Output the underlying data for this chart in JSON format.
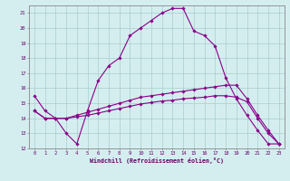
{
  "xlabel": "Windchill (Refroidissement éolien,°C)",
  "top_curve_x": [
    0,
    1,
    2,
    3,
    4,
    5,
    6,
    7,
    8,
    9,
    10,
    11,
    12,
    13,
    14,
    15,
    16,
    17,
    18,
    19,
    20,
    21,
    22,
    23
  ],
  "top_curve_y": [
    15.5,
    14.5,
    14.0,
    13.0,
    12.3,
    14.5,
    16.5,
    17.5,
    18.0,
    19.5,
    20.0,
    20.5,
    21.0,
    21.3,
    21.3,
    19.8,
    19.5,
    18.8,
    16.7,
    15.3,
    14.2,
    13.2,
    12.3,
    12.3
  ],
  "mid_curve_x": [
    0,
    1,
    2,
    3,
    4,
    5,
    6,
    7,
    8,
    9,
    10,
    11,
    12,
    13,
    14,
    15,
    16,
    17,
    18,
    19,
    20,
    21,
    22,
    23
  ],
  "mid_curve_y": [
    14.5,
    14.0,
    14.0,
    14.0,
    14.2,
    14.4,
    14.6,
    14.8,
    15.0,
    15.2,
    15.4,
    15.5,
    15.6,
    15.7,
    15.8,
    15.9,
    16.0,
    16.1,
    16.2,
    16.2,
    15.3,
    14.2,
    13.2,
    12.3
  ],
  "bot_curve_x": [
    0,
    1,
    2,
    3,
    4,
    5,
    6,
    7,
    8,
    9,
    10,
    11,
    12,
    13,
    14,
    15,
    16,
    17,
    18,
    19,
    20,
    21,
    22,
    23
  ],
  "bot_curve_y": [
    14.5,
    14.0,
    14.0,
    14.0,
    14.1,
    14.2,
    14.35,
    14.5,
    14.65,
    14.8,
    14.95,
    15.05,
    15.15,
    15.2,
    15.3,
    15.35,
    15.4,
    15.5,
    15.5,
    15.4,
    15.1,
    14.0,
    13.0,
    12.3
  ],
  "ylim": [
    12,
    21.5
  ],
  "xlim": [
    -0.5,
    23.5
  ],
  "yticks": [
    12,
    13,
    14,
    15,
    16,
    17,
    18,
    19,
    20,
    21
  ],
  "xticks": [
    0,
    1,
    2,
    3,
    4,
    5,
    6,
    7,
    8,
    9,
    10,
    11,
    12,
    13,
    14,
    15,
    16,
    17,
    18,
    19,
    20,
    21,
    22,
    23
  ],
  "line_color": "#880088",
  "marker_color": "#880088",
  "bg_color": "#d4eef0",
  "grid_color": "#aacccc",
  "label_color": "#660066",
  "tick_color": "#660066",
  "axis_color": "#888888"
}
